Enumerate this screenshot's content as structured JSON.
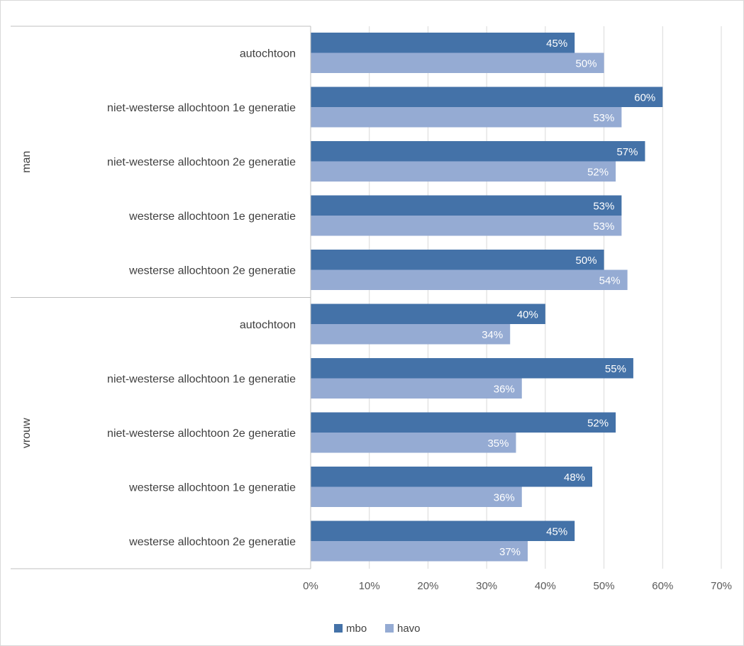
{
  "chart_data": {
    "type": "bar",
    "orientation": "horizontal",
    "groups": [
      {
        "label": "man",
        "categories": [
          "autochtoon",
          "niet-westerse allochtoon 1e generatie",
          "niet-westerse allochtoon 2e generatie",
          "westerse allochtoon 1e generatie",
          "westerse allochtoon 2e generatie"
        ]
      },
      {
        "label": "vrouw",
        "categories": [
          "autochtoon",
          "niet-westerse allochtoon 1e generatie",
          "niet-westerse allochtoon 2e generatie",
          "westerse allochtoon 1e generatie",
          "westerse allochtoon 2e generatie"
        ]
      }
    ],
    "series": [
      {
        "name": "mbo",
        "color": "#4472a8",
        "values": [
          45,
          60,
          57,
          53,
          50,
          40,
          55,
          52,
          48,
          45
        ],
        "labels": [
          "45%",
          "60%",
          "57%",
          "53%",
          "50%",
          "40%",
          "55%",
          "52%",
          "48%",
          "45%"
        ]
      },
      {
        "name": "havo",
        "color": "#95abd3",
        "values": [
          50,
          53,
          52,
          53,
          54,
          34,
          36,
          35,
          36,
          37
        ],
        "labels": [
          "50%",
          "53%",
          "52%",
          "53%",
          "54%",
          "34%",
          "36%",
          "35%",
          "36%",
          "37%"
        ]
      }
    ],
    "xlim": [
      0,
      70
    ],
    "xticks": [
      0,
      10,
      20,
      30,
      40,
      50,
      60,
      70
    ],
    "xtick_labels": [
      "0%",
      "10%",
      "20%",
      "30%",
      "40%",
      "50%",
      "60%",
      "70%"
    ],
    "grid": true,
    "legend": "bottom"
  }
}
